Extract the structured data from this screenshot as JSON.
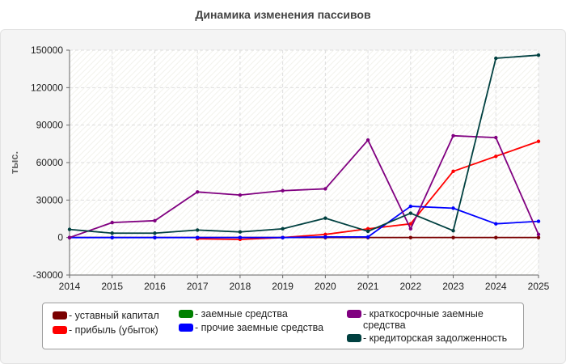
{
  "colors": {
    "ustavnyi": "#7a0000",
    "pribyl": "#ff0000",
    "zaemnye": "#008000",
    "prochie": "#0000ff",
    "kratkosrochnye": "#800080",
    "kreditorskaya": "#004040"
  },
  "chart_data": {
    "type": "line",
    "title": "Динамика изменения пассивов",
    "xlabel": "",
    "ylabel": "тыс.",
    "ylim": [
      -30000,
      150000
    ],
    "yticks": [
      "-30000",
      "0",
      "30000",
      "60000",
      "90000",
      "120000",
      "150000"
    ],
    "x": [
      "2014",
      "2015",
      "2016",
      "2017",
      "2018",
      "2019",
      "2020",
      "2021",
      "2022",
      "2023",
      "2024",
      "2025"
    ],
    "grid": true,
    "legend_position": "bottom",
    "series": [
      {
        "name": "уставный капитал",
        "color": "#7a0000",
        "values": [
          10,
          10,
          10,
          10,
          10,
          10,
          10,
          10,
          10,
          10,
          10,
          10
        ]
      },
      {
        "name": "прибыль (убыток)",
        "color": "#ff0000",
        "values": [
          null,
          null,
          null,
          -1000,
          -1500,
          0,
          2500,
          7000,
          11000,
          53000,
          65000,
          77000
        ]
      },
      {
        "name": "заемные средства",
        "color": "#008000",
        "values": [
          null,
          null,
          null,
          null,
          null,
          null,
          null,
          null,
          null,
          null,
          null,
          null
        ]
      },
      {
        "name": "прочие заемные средства",
        "color": "#0000ff",
        "values": [
          0,
          0,
          0,
          0,
          0,
          0,
          500,
          500,
          25000,
          23500,
          11000,
          13000
        ]
      },
      {
        "name": "краткосрочные заемные средства",
        "color": "#800080",
        "values": [
          0,
          12000,
          13500,
          36500,
          34000,
          37500,
          39000,
          78000,
          7000,
          81500,
          80000,
          2500
        ]
      },
      {
        "name": "кредиторская задолженность",
        "color": "#004040",
        "values": [
          6500,
          3500,
          3500,
          6000,
          4500,
          7000,
          15500,
          5000,
          19500,
          5500,
          143500,
          146000
        ]
      }
    ]
  },
  "legend": {
    "items": [
      "- уставный капитал",
      "- прибыль (убыток)",
      "- заемные средства",
      "- прочие заемные средства",
      "- краткосрочные заемные средства",
      "- кредиторская задолженность"
    ]
  }
}
